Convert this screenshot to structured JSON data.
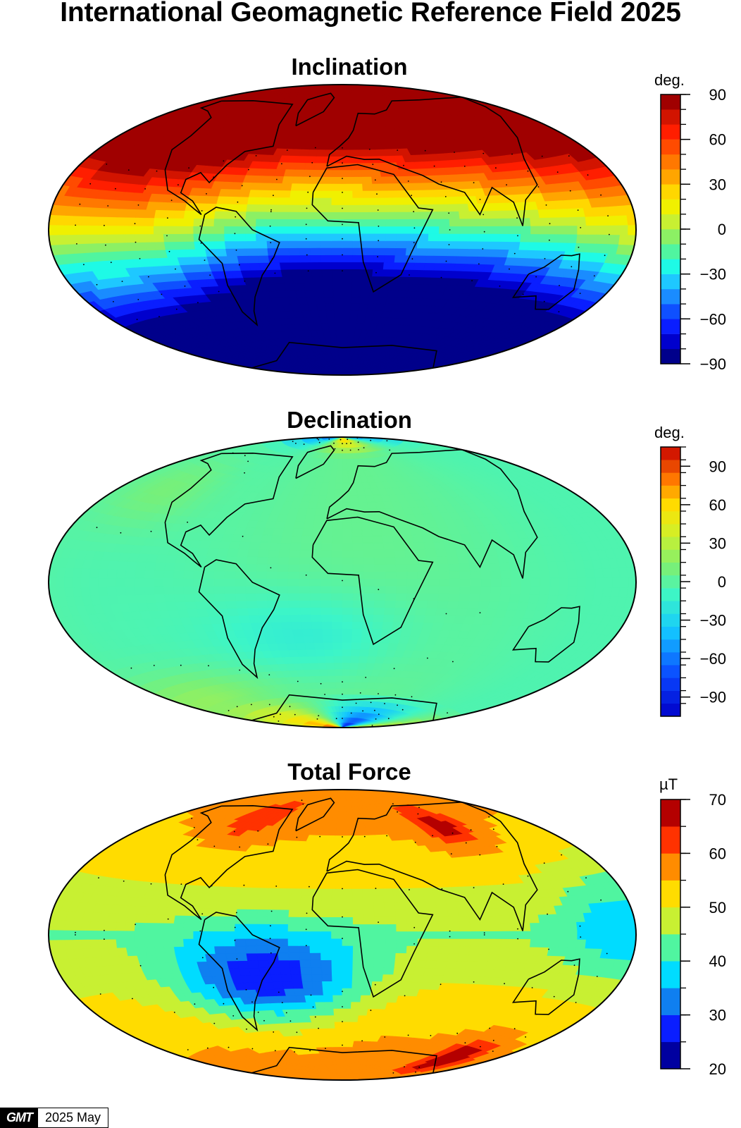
{
  "title": "International Geomagnetic Reference Field 2025",
  "maps": [
    {
      "title": "Inclination",
      "unit": "deg.",
      "tick_labels": [
        "90",
        "60",
        "30",
        "0",
        "−30",
        "−60",
        "−90"
      ]
    },
    {
      "title": "Declination",
      "unit": "deg.",
      "tick_labels": [
        "90",
        "60",
        "30",
        "0",
        "−30",
        "−60",
        "−90"
      ]
    },
    {
      "title": "Total Force",
      "unit": "µT",
      "tick_labels": [
        "70",
        "60",
        "50",
        "40",
        "30",
        "20"
      ]
    }
  ],
  "stamp": {
    "logo": "GMT",
    "date": "2025 May"
  },
  "chart_data": [
    {
      "type": "heatmap",
      "title": "Inclination",
      "projection": "Hammer-Aitoff",
      "colorbar": {
        "label": "deg.",
        "min": -90,
        "max": 90,
        "step": 10,
        "ticks": [
          90,
          60,
          30,
          0,
          -30,
          -60,
          -90
        ]
      },
      "palette": [
        "#00008b",
        "#0000cd",
        "#0a1eff",
        "#0f50ff",
        "#1a8cff",
        "#1ec8ff",
        "#1efae6",
        "#50f5a0",
        "#8cf064",
        "#c8f032",
        "#f0f000",
        "#ffd700",
        "#ffa500",
        "#ff7800",
        "#ff4b00",
        "#ff1e00",
        "#d21400",
        "#a00000"
      ]
    },
    {
      "type": "heatmap",
      "title": "Declination",
      "projection": "Hammer-Aitoff",
      "colorbar": {
        "label": "deg.",
        "min": -105,
        "max": 105,
        "step": 10,
        "ticks": [
          90,
          60,
          30,
          0,
          -30,
          -60,
          -90
        ]
      }
    },
    {
      "type": "heatmap",
      "title": "Total Force",
      "projection": "Hammer-Aitoff",
      "colorbar": {
        "label": "µT",
        "min": 20,
        "max": 70,
        "step": 5,
        "ticks": [
          70,
          60,
          50,
          40,
          30,
          20
        ]
      },
      "palette": [
        "#0000a0",
        "#0a1eff",
        "#0f7ff0",
        "#00dcff",
        "#50f5a0",
        "#c8f032",
        "#ffdc00",
        "#ff8c00",
        "#ff3200",
        "#b40000"
      ]
    }
  ]
}
